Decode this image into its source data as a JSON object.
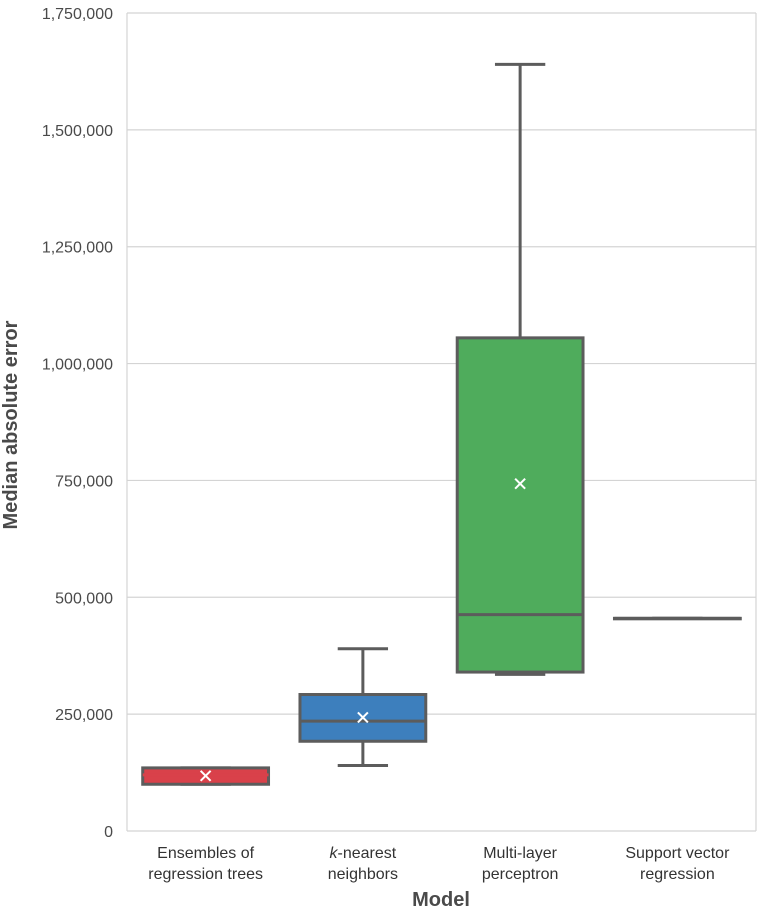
{
  "chart_data": {
    "type": "box",
    "title": "",
    "xlabel": "Model",
    "ylabel": "Median absolute error",
    "ylim": [
      0,
      1750000
    ],
    "yticks": [
      0,
      250000,
      500000,
      750000,
      1000000,
      1250000,
      1500000,
      1750000
    ],
    "ytick_labels": [
      "0",
      "250,000",
      "500,000",
      "750,000",
      "1,000,000",
      "1,250,000",
      "1,500,000",
      "1,750,000"
    ],
    "grid": "horizontal",
    "categories": [
      {
        "line1": "Ensembles of",
        "line1_italic": "",
        "line2": "regression trees"
      },
      {
        "line1": "-nearest",
        "line1_italic": "k",
        "line2": "neighbors"
      },
      {
        "line1": "Multi-layer",
        "line1_italic": "",
        "line2": "perceptron"
      },
      {
        "line1": "Support vector",
        "line1_italic": "",
        "line2": "regression"
      }
    ],
    "boxes": [
      {
        "whisker_low": 100000,
        "q1": 100000,
        "median": 120000,
        "q3": 135000,
        "whisker_high": 135000,
        "mean": 118000,
        "color": "#d9414a",
        "median_color": "#d9414a"
      },
      {
        "whisker_low": 140000,
        "q1": 192000,
        "median": 235000,
        "q3": 292000,
        "whisker_high": 390000,
        "mean": 243000,
        "color": "#3d7fbd",
        "median_color": "#5c5c5c"
      },
      {
        "whisker_low": 335000,
        "q1": 340000,
        "median": 463000,
        "q3": 1055000,
        "whisker_high": 1640000,
        "mean": 743000,
        "color": "#4fac5c",
        "median_color": "#5c5c5c"
      },
      {
        "whisker_low": 455000,
        "q1": 455000,
        "median": 455000,
        "q3": 455000,
        "whisker_high": 455000,
        "mean": null,
        "color": "#8c6bb1",
        "median_color": "#5c5c5c"
      }
    ],
    "line_color": "#5c5c5c",
    "mean_marker_color": "#ffffff"
  }
}
